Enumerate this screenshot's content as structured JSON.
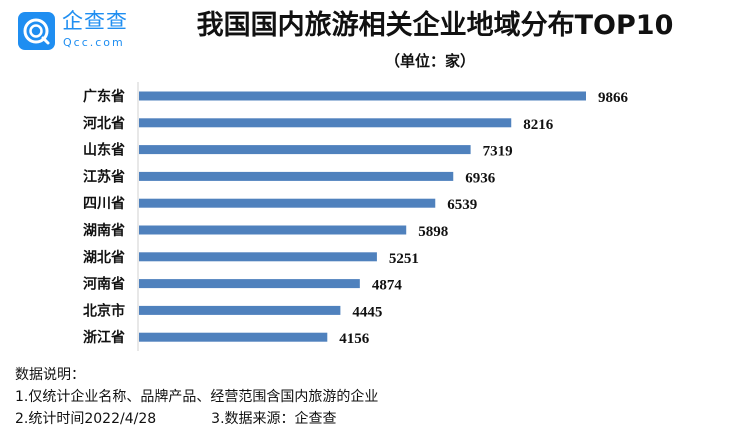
{
  "logo": {
    "name_cn": "企查查",
    "name_en": "Qcc.com"
  },
  "chart_data": {
    "type": "bar",
    "orientation": "horizontal",
    "title": "我国国内旅游相关企业地域分布TOP10",
    "subtitle": "（单位：家）",
    "categories": [
      "广东省",
      "河北省",
      "山东省",
      "江苏省",
      "四川省",
      "湖南省",
      "湖北省",
      "河南省",
      "北京市",
      "浙江省"
    ],
    "values": [
      9866,
      8216,
      7319,
      6936,
      6539,
      5898,
      5251,
      4874,
      4445,
      4156
    ],
    "xlim": [
      0,
      9866
    ],
    "grid": false,
    "bar_color": "#4f81bd"
  },
  "notes": {
    "heading": "数据说明：",
    "line1": "1.仅统计企业名称、品牌产品、经营范围含国内旅游的企业",
    "line2a": "2.统计时间2022/4/28",
    "line2b": "3.数据来源：企查查"
  }
}
